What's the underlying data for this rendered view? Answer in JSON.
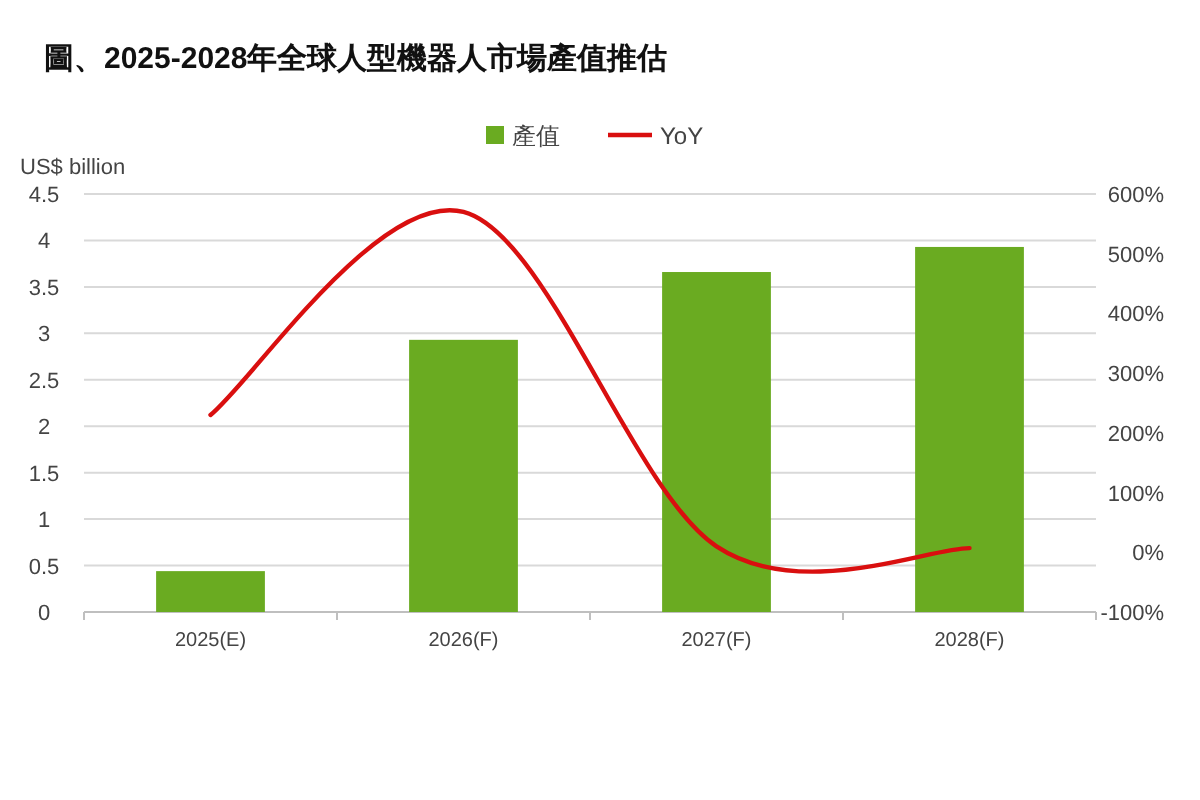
{
  "chart_data": {
    "type": "bar",
    "title": "圖、2025-2028年全球人型機器人市場產值推估",
    "ylabel": "US$ billion",
    "categories": [
      "2025(E)",
      "2026(F)",
      "2027(F)",
      "2028(F)"
    ],
    "series": [
      {
        "name": "產值",
        "color": "#6aab21",
        "values": [
          0.44,
          2.93,
          3.66,
          3.93
        ]
      },
      {
        "name": "YoY",
        "type": "line",
        "axis": "y2",
        "color": "#d90f0f",
        "values": [
          230,
          570,
          10,
          7
        ]
      }
    ],
    "ylim": [
      0,
      4.5
    ],
    "yticks": [
      0,
      0.5,
      1,
      1.5,
      2,
      2.5,
      3,
      3.5,
      4,
      4.5
    ],
    "y2lim": [
      -100,
      600
    ],
    "y2ticks": [
      {
        "value": -100,
        "label": "-100%"
      },
      {
        "value": 0,
        "label": "0%"
      },
      {
        "value": 100,
        "label": "100%"
      },
      {
        "value": 200,
        "label": "200%"
      },
      {
        "value": 300,
        "label": "300%"
      },
      {
        "value": 400,
        "label": "400%"
      },
      {
        "value": 500,
        "label": "500%"
      },
      {
        "value": 600,
        "label": "600%"
      }
    ],
    "grid": "y",
    "legend": "top",
    "marker": "none",
    "line_style": "solid"
  }
}
